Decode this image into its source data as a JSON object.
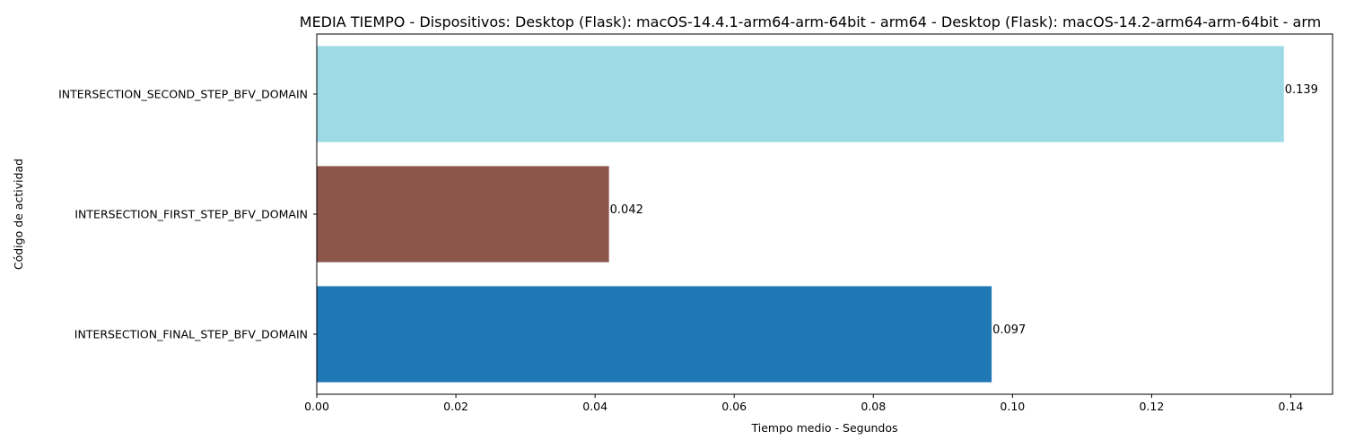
{
  "chart_data": {
    "type": "bar",
    "orientation": "horizontal",
    "title": "MEDIA TIEMPO - Dispositivos: Desktop (Flask): macOS-14.4.1-arm64-arm-64bit - arm64 - Desktop (Flask): macOS-14.2-arm64-arm-64bit - arm",
    "xlabel": "Tiempo medio - Segundos",
    "ylabel": "Código de actividad",
    "categories": [
      "INTERSECTION_FINAL_STEP_BFV_DOMAIN",
      "INTERSECTION_FIRST_STEP_BFV_DOMAIN",
      "INTERSECTION_SECOND_STEP_BFV_DOMAIN"
    ],
    "values": [
      0.097,
      0.042,
      0.139
    ],
    "value_labels": [
      "0.097",
      "0.042",
      "0.139"
    ],
    "colors": [
      "#1f77b4",
      "#8c564b",
      "#9edae5"
    ],
    "xlim": [
      0,
      0.146
    ],
    "xticks": [
      0.0,
      0.02,
      0.04,
      0.06,
      0.08,
      0.1,
      0.12,
      0.14
    ],
    "xtick_labels": [
      "0.00",
      "0.02",
      "0.04",
      "0.06",
      "0.08",
      "0.10",
      "0.12",
      "0.14"
    ],
    "grid": false,
    "legend": "none"
  }
}
